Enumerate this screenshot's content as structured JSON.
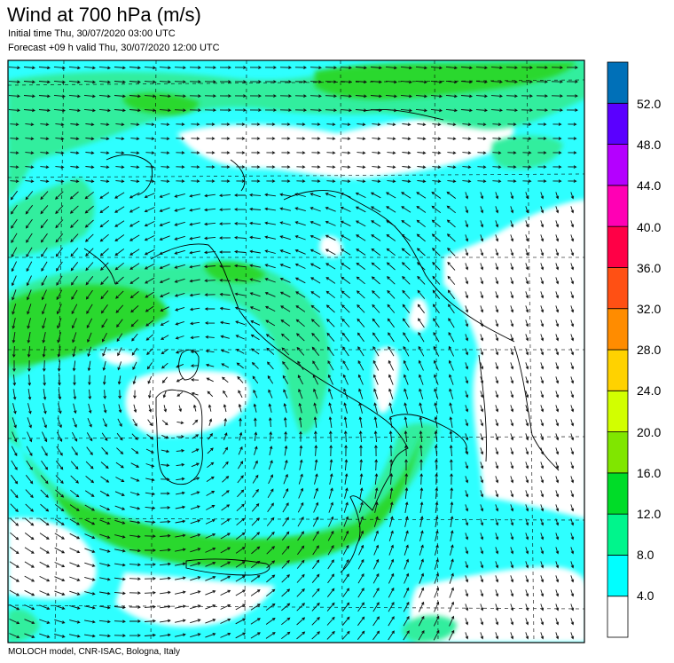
{
  "header": {
    "title": "Wind at 700 hPa (m/s)",
    "initial_time": "Initial time  Thu, 30/07/2020 03:00 UTC",
    "forecast": "Forecast +09 h valid  Thu, 30/07/2020 12:00 UTC"
  },
  "footer": {
    "credit": "MOLOCH model, CNR-ISAC, Bologna, Italy"
  },
  "colorbar": {
    "levels": [
      "4.0",
      "8.0",
      "12.0",
      "16.0",
      "20.0",
      "24.0",
      "28.0",
      "32.0",
      "36.0",
      "40.0",
      "44.0",
      "48.0",
      "52.0"
    ],
    "colors": [
      "#ffffff",
      "#00ffff",
      "#00f58c",
      "#00dc28",
      "#80e600",
      "#d2ff00",
      "#ffd200",
      "#ff8c00",
      "#ff5014",
      "#ff0046",
      "#ff00b4",
      "#b400ff",
      "#5a00ff",
      "#0070b8"
    ]
  },
  "map": {
    "colors": {
      "calm": "#ffffff",
      "light": "#2effff",
      "moderate": "#33ee9e",
      "strong": "#2bd82f",
      "coast": "#000000",
      "arrow": "#111111"
    }
  }
}
